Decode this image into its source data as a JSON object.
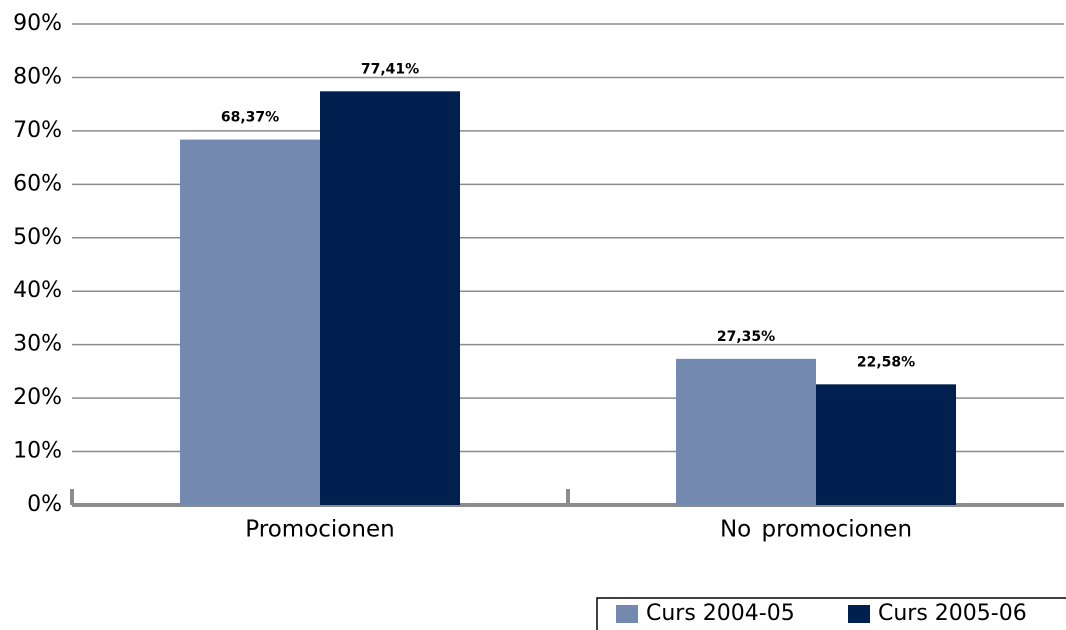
{
  "chart_data": {
    "type": "bar",
    "categories": [
      "Promocionen",
      "No promocionen"
    ],
    "series": [
      {
        "name": "Curs 2004-05",
        "color": "#7389b0",
        "values": [
          68.37,
          27.35
        ],
        "value_labels": [
          "68,37%",
          "27,35%"
        ]
      },
      {
        "name": "Curs 2005-06",
        "color": "#00204f",
        "values": [
          77.41,
          22.58
        ],
        "value_labels": [
          "77,41%",
          "22,58%"
        ]
      }
    ],
    "ylim": [
      0,
      90
    ],
    "yticks": [
      {
        "value": 0,
        "label": "0%"
      },
      {
        "value": 10,
        "label": "10%"
      },
      {
        "value": 20,
        "label": "20%"
      },
      {
        "value": 30,
        "label": "30%"
      },
      {
        "value": 40,
        "label": "40%"
      },
      {
        "value": 50,
        "label": "50%"
      },
      {
        "value": 60,
        "label": "60%"
      },
      {
        "value": 70,
        "label": "70%"
      },
      {
        "value": 80,
        "label": "80%"
      },
      {
        "value": 90,
        "label": "90%"
      }
    ],
    "grid": true,
    "legend": "bottom-right"
  }
}
